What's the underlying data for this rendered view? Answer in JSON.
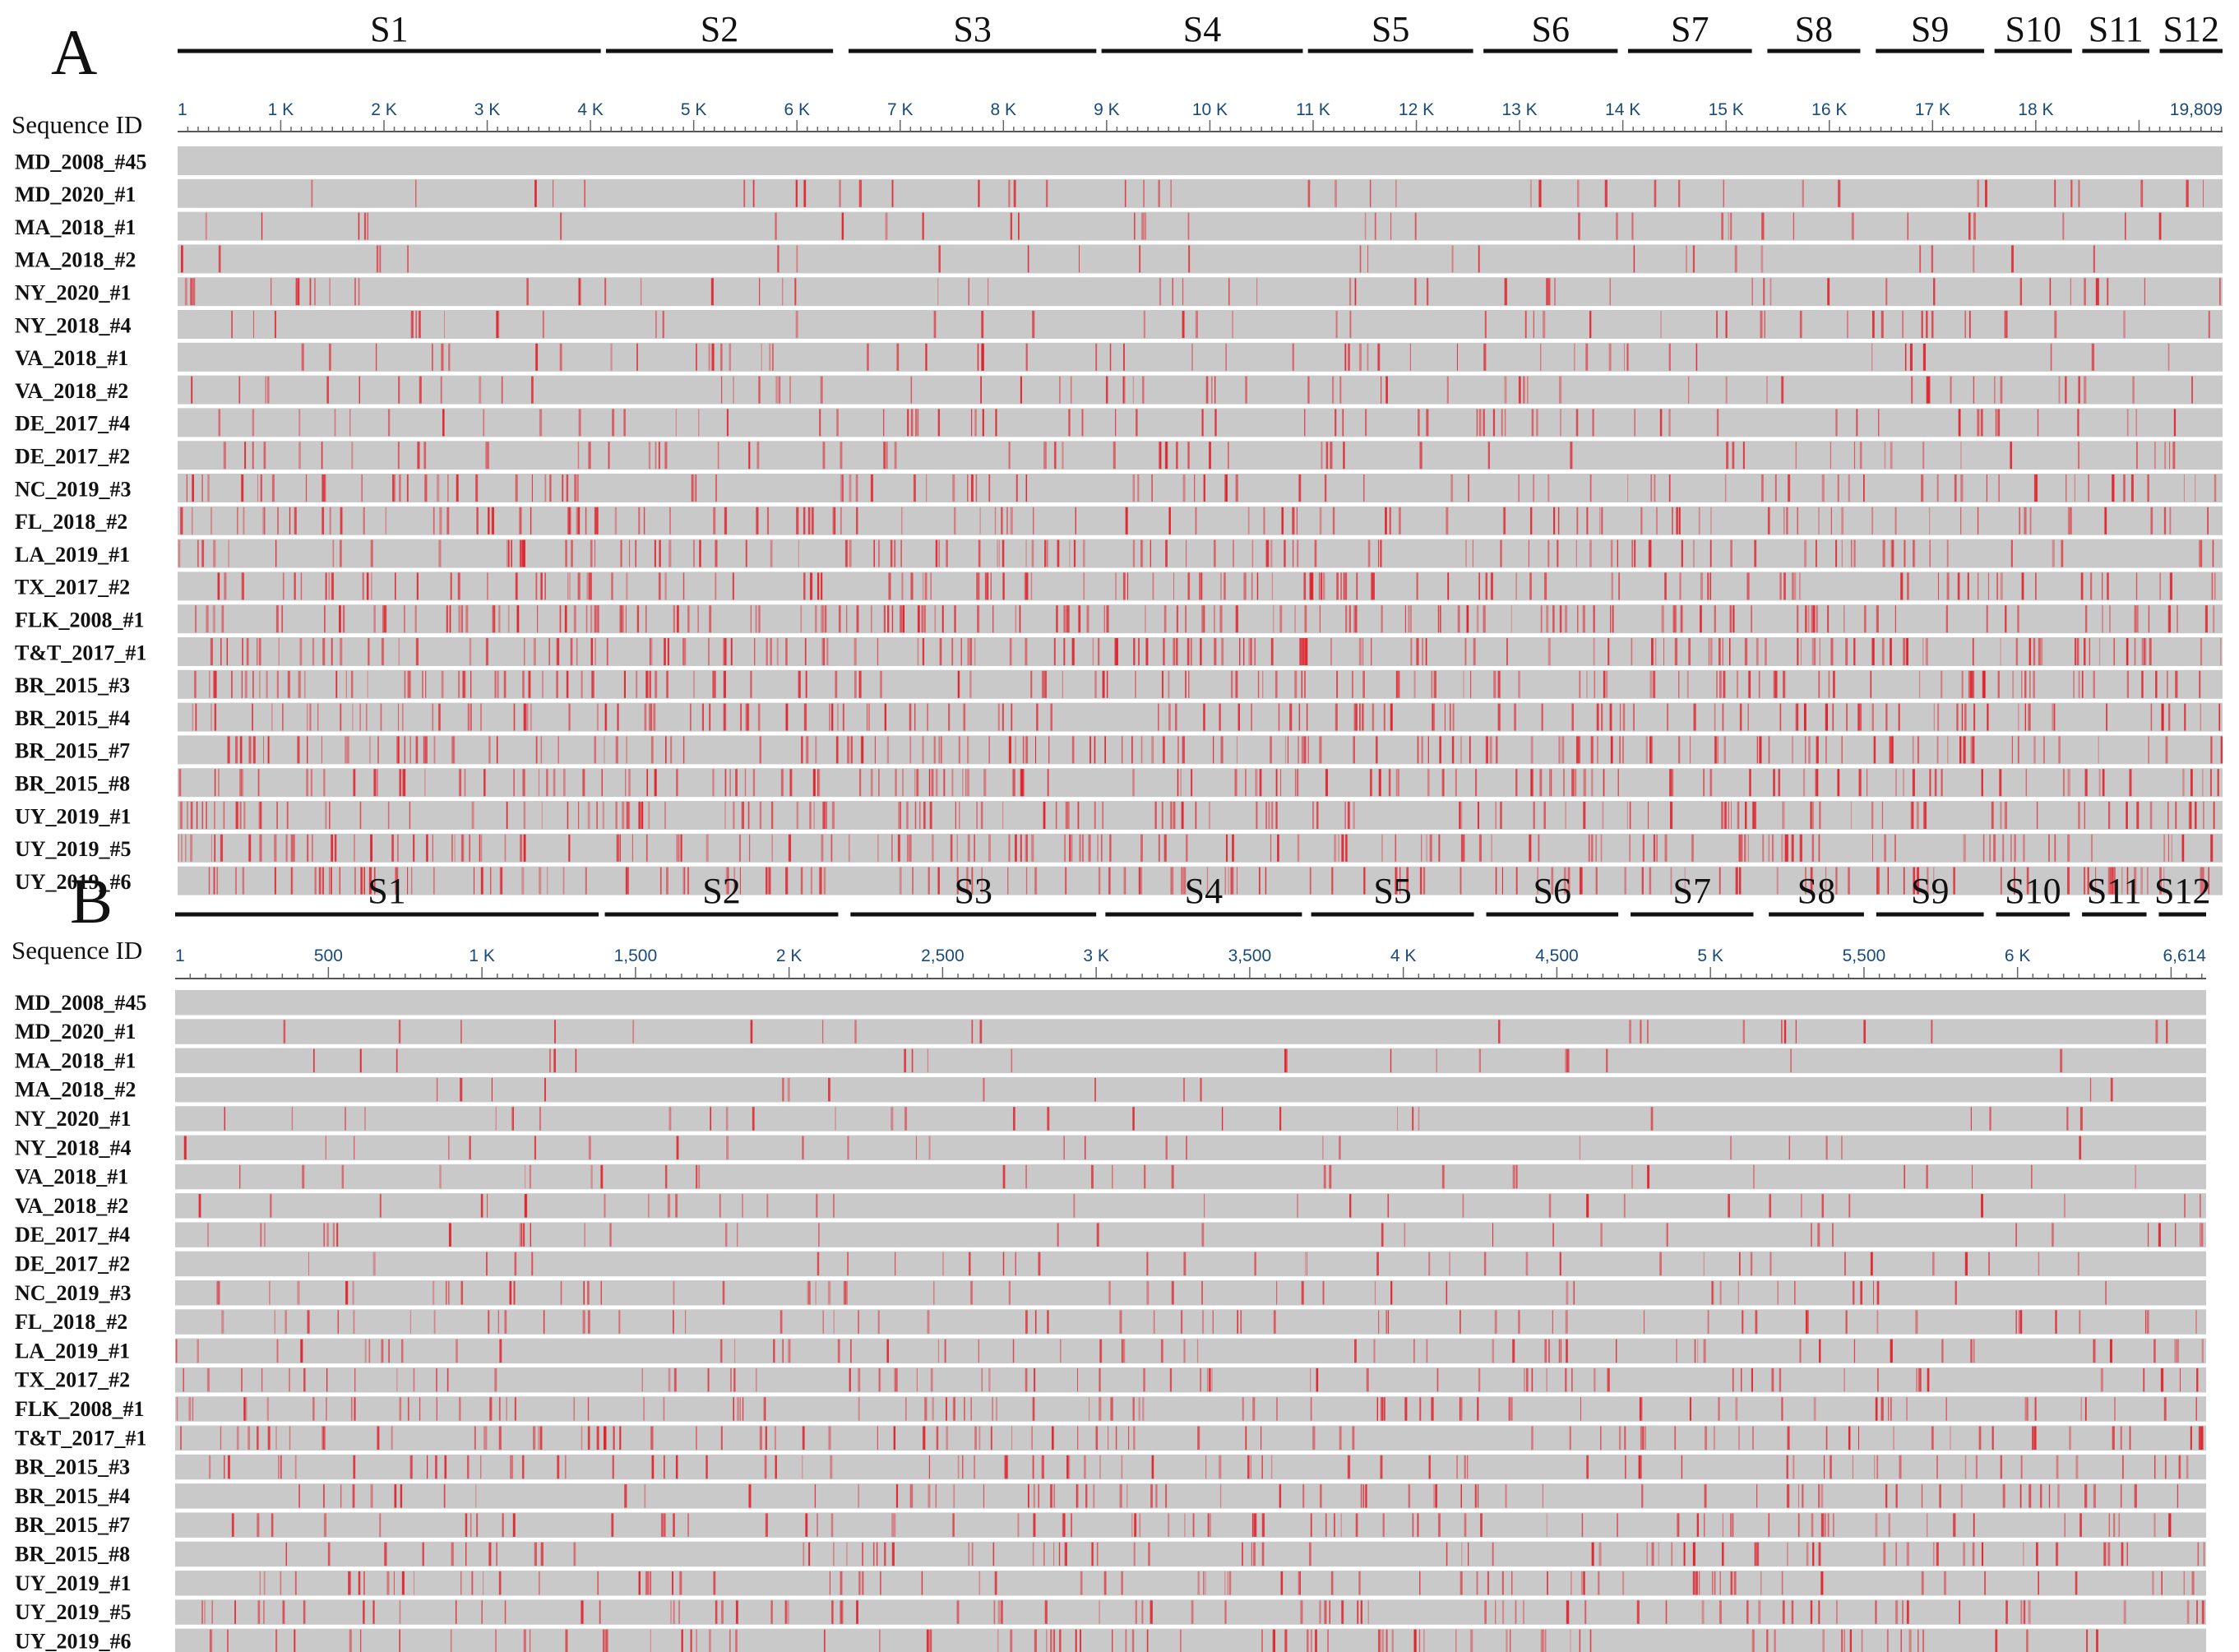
{
  "colors": {
    "background": "#ffffff",
    "row_fill": "#c9c9c9",
    "variant": "#e0202a",
    "axis_text": "#1a4a7a"
  },
  "sequence_ids": [
    "MD_2008_#45",
    "MD_2020_#1",
    "MA_2018_#1",
    "MA_2018_#2",
    "NY_2020_#1",
    "NY_2018_#4",
    "VA_2018_#1",
    "VA_2018_#2",
    "DE_2017_#4",
    "DE_2017_#2",
    "NC_2019_#3",
    "FL_2018_#2",
    "LA_2019_#1",
    "TX_2017_#2",
    "FLK_2008_#1",
    "T&T_2017_#1",
    "BR_2015_#3",
    "BR_2015_#4",
    "BR_2015_#7",
    "BR_2015_#8",
    "UY_2019_#1",
    "UY_2019_#5",
    "UY_2019_#6"
  ],
  "variant_density": [
    0,
    0.16,
    0.14,
    0.1,
    0.2,
    0.18,
    0.22,
    0.24,
    0.26,
    0.26,
    0.38,
    0.42,
    0.44,
    0.5,
    0.62,
    0.64,
    0.58,
    0.56,
    0.58,
    0.56,
    0.58,
    0.6,
    0.6
  ],
  "panels": [
    {
      "letter": "A",
      "seqid_title": "Sequence ID",
      "axis_max": 19809,
      "axis_labels": [
        {
          "pos": 1,
          "text": "1"
        },
        {
          "pos": 1000,
          "text": "1 K"
        },
        {
          "pos": 2000,
          "text": "2 K"
        },
        {
          "pos": 3000,
          "text": "3 K"
        },
        {
          "pos": 4000,
          "text": "4 K"
        },
        {
          "pos": 5000,
          "text": "5 K"
        },
        {
          "pos": 6000,
          "text": "6 K"
        },
        {
          "pos": 7000,
          "text": "7 K"
        },
        {
          "pos": 8000,
          "text": "8 K"
        },
        {
          "pos": 9000,
          "text": "9 K"
        },
        {
          "pos": 10000,
          "text": "10 K"
        },
        {
          "pos": 11000,
          "text": "11 K"
        },
        {
          "pos": 12000,
          "text": "12 K"
        },
        {
          "pos": 13000,
          "text": "13 K"
        },
        {
          "pos": 14000,
          "text": "14 K"
        },
        {
          "pos": 15000,
          "text": "15 K"
        },
        {
          "pos": 16000,
          "text": "16 K"
        },
        {
          "pos": 17000,
          "text": "17 K"
        },
        {
          "pos": 18000,
          "text": "18 K"
        },
        {
          "pos": 19809,
          "text": "19,809"
        }
      ],
      "segments": [
        {
          "label": "S1",
          "start": 1,
          "end": 4100
        },
        {
          "label": "S2",
          "start": 4150,
          "end": 6350
        },
        {
          "label": "S3",
          "start": 6500,
          "end": 8900
        },
        {
          "label": "S4",
          "start": 8950,
          "end": 10900
        },
        {
          "label": "S5",
          "start": 10950,
          "end": 12550
        },
        {
          "label": "S6",
          "start": 12650,
          "end": 13950
        },
        {
          "label": "S7",
          "start": 14050,
          "end": 15250
        },
        {
          "label": "S8",
          "start": 15400,
          "end": 16300
        },
        {
          "label": "S9",
          "start": 16450,
          "end": 17500
        },
        {
          "label": "S10",
          "start": 17600,
          "end": 18350
        },
        {
          "label": "S11",
          "start": 18450,
          "end": 19100
        },
        {
          "label": "S12",
          "start": 19200,
          "end": 19809
        }
      ]
    },
    {
      "letter": "B",
      "seqid_title": "Sequence ID",
      "axis_max": 6614,
      "axis_labels": [
        {
          "pos": 1,
          "text": "1"
        },
        {
          "pos": 500,
          "text": "500"
        },
        {
          "pos": 1000,
          "text": "1 K"
        },
        {
          "pos": 1500,
          "text": "1,500"
        },
        {
          "pos": 2000,
          "text": "2 K"
        },
        {
          "pos": 2500,
          "text": "2,500"
        },
        {
          "pos": 3000,
          "text": "3 K"
        },
        {
          "pos": 3500,
          "text": "3,500"
        },
        {
          "pos": 4000,
          "text": "4 K"
        },
        {
          "pos": 4500,
          "text": "4,500"
        },
        {
          "pos": 5000,
          "text": "5 K"
        },
        {
          "pos": 5500,
          "text": "5,500"
        },
        {
          "pos": 6000,
          "text": "6 K"
        },
        {
          "pos": 6614,
          "text": "6,614"
        }
      ],
      "segments": [
        {
          "label": "S1",
          "start": 1,
          "end": 1380
        },
        {
          "label": "S2",
          "start": 1400,
          "end": 2160
        },
        {
          "label": "S3",
          "start": 2200,
          "end": 3000
        },
        {
          "label": "S4",
          "start": 3030,
          "end": 3670
        },
        {
          "label": "S5",
          "start": 3700,
          "end": 4230
        },
        {
          "label": "S6",
          "start": 4270,
          "end": 4700
        },
        {
          "label": "S7",
          "start": 4740,
          "end": 5140
        },
        {
          "label": "S8",
          "start": 5190,
          "end": 5500
        },
        {
          "label": "S9",
          "start": 5540,
          "end": 5890
        },
        {
          "label": "S10",
          "start": 5930,
          "end": 6170
        },
        {
          "label": "S11",
          "start": 6210,
          "end": 6420
        },
        {
          "label": "S12",
          "start": 6460,
          "end": 6614
        }
      ]
    }
  ]
}
